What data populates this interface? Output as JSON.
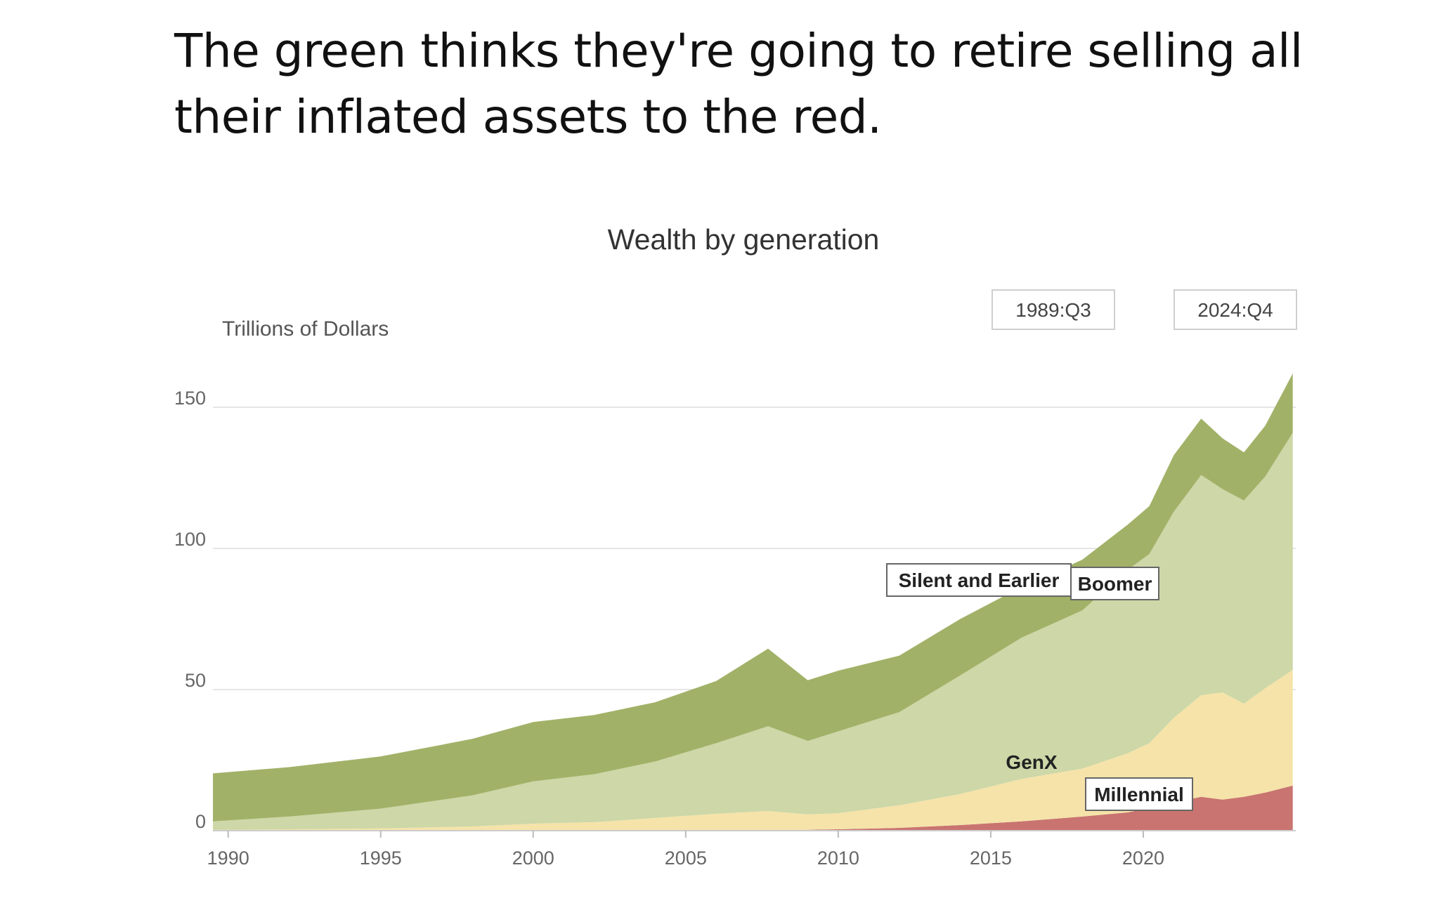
{
  "post": {
    "caption": "The green thinks they're going to retire selling all their inflated assets to the red."
  },
  "chart_data": {
    "type": "area",
    "stacked": true,
    "title": "Wealth by generation",
    "ylabel": "Trillions of Dollars",
    "xlabel": "",
    "xlim": [
      1989.5,
      2025.0
    ],
    "ylim": [
      0,
      150
    ],
    "yticks": [
      0,
      50,
      100,
      150
    ],
    "xticks": [
      1990,
      1995,
      2000,
      2005,
      2010,
      2015,
      2020
    ],
    "grid": true,
    "range_buttons": [
      "1989:Q3",
      "2024:Q4"
    ],
    "x": [
      1989.5,
      1992,
      1995,
      1998,
      2000,
      2002,
      2004,
      2006,
      2007.7,
      2009.0,
      2010,
      2012,
      2014,
      2016,
      2018,
      2019.5,
      2020.2,
      2021,
      2021.9,
      2022.6,
      2023.3,
      2024,
      2024.9
    ],
    "series": [
      {
        "name": "Millennial",
        "color": "#c97470",
        "values": [
          0,
          0,
          0,
          0,
          0,
          0,
          0,
          0,
          0.2,
          0.3,
          0.5,
          1.0,
          2.0,
          3.3,
          5.0,
          6.5,
          8.0,
          10.0,
          12.0,
          11.0,
          12.0,
          13.5,
          16.0
        ]
      },
      {
        "name": "GenX",
        "color": "#f5e3a9",
        "values": [
          0.3,
          0.5,
          0.8,
          1.5,
          2.5,
          3.0,
          4.5,
          6.0,
          6.8,
          5.5,
          5.7,
          8.0,
          11.0,
          15.0,
          17.0,
          21.0,
          23.0,
          30.0,
          36.0,
          38.0,
          33.0,
          37.0,
          41.0
        ]
      },
      {
        "name": "Boomer",
        "color": "#cdd7a7",
        "values": [
          3.0,
          4.5,
          7.0,
          11.0,
          15.0,
          17.0,
          20.0,
          25.0,
          30.0,
          26.0,
          29.0,
          33.0,
          42.0,
          50.0,
          56.0,
          65.0,
          67.0,
          73.0,
          78.0,
          72.0,
          72.0,
          75.0,
          84.0
        ]
      },
      {
        "name": "Silent and Earlier",
        "color": "#a1b268",
        "values": [
          17.0,
          17.5,
          18.5,
          20.0,
          21.0,
          21.0,
          21.0,
          22.0,
          27.5,
          21.5,
          21.5,
          20.0,
          20.0,
          18.0,
          18.0,
          16.0,
          17.0,
          20.0,
          20.0,
          18.0,
          17.0,
          18.0,
          21.0
        ]
      }
    ],
    "annotations": [
      "Silent and Earlier",
      "Boomer",
      "GenX",
      "Millennial"
    ]
  }
}
